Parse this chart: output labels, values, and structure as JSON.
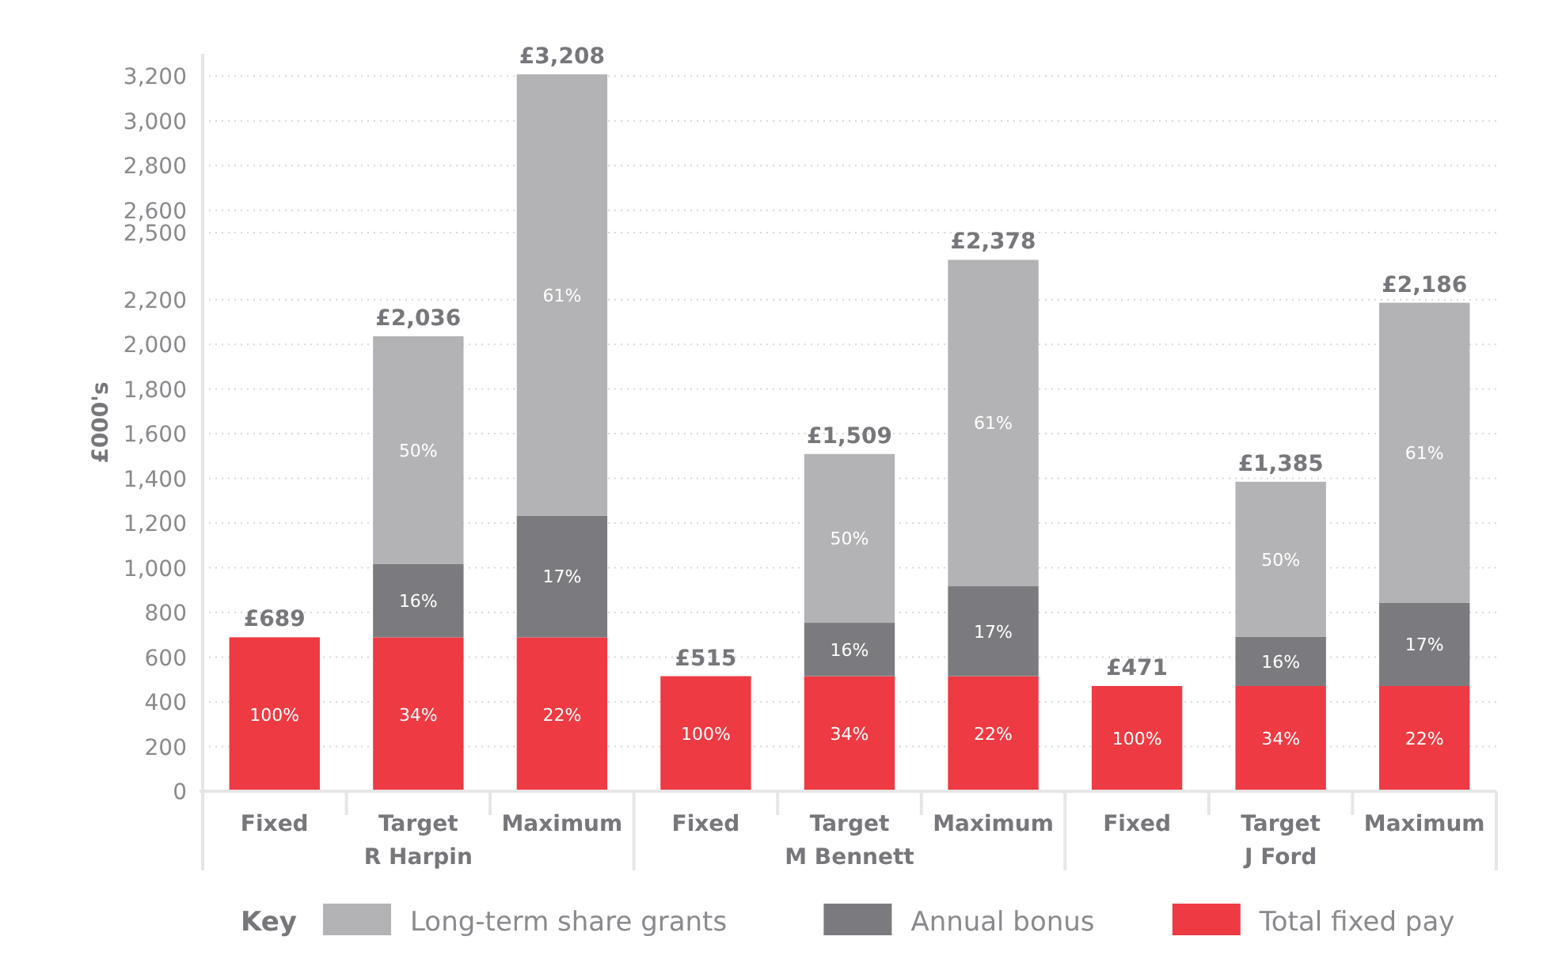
{
  "chart_data": {
    "type": "bar",
    "stacked": true,
    "ylabel": "£000's",
    "legend": "bottom",
    "legend_title": "Key",
    "grid": "y",
    "data_labels": false,
    "categories": [
      "Fixed",
      "Target",
      "Maximum",
      "Fixed",
      "Target",
      "Maximum",
      "Fixed",
      "Target",
      "Maximum"
    ],
    "annotations": [
      "R Harpin",
      "M Bennett",
      "J Ford",
      "100%",
      "34%",
      "16%",
      "50%",
      "22%",
      "17%",
      "61%",
      "100%",
      "34%",
      "16%",
      "50%",
      "22%",
      "17%",
      "61%",
      "100%",
      "34%",
      "16%",
      "50%",
      "22%",
      "17%",
      "61%"
    ],
    "series": [
      {
        "name": "Total fixed pay",
        "color": "#ee3a43",
        "values": [
          689,
          689,
          689,
          515,
          515,
          515,
          471,
          471,
          471
        ]
      },
      {
        "name": "Annual bonus",
        "color": "#7b7b7f",
        "values": [
          null,
          329,
          545,
          null,
          239,
          404,
          null,
          221,
          372
        ]
      },
      {
        "name": "Long-term share grants",
        "color": "#b3b3b5",
        "values": [
          null,
          1018,
          1974,
          null,
          755,
          1459,
          null,
          693,
          1343
        ]
      }
    ],
    "totals": [
      "£689",
      "£2,036",
      "£3,208",
      "£515",
      "£1,509",
      "£2,378",
      "£471",
      "£1,385",
      "£2,186"
    ],
    "ylim": [
      0,
      3300
    ],
    "yticks": [
      0,
      200,
      400,
      600,
      800,
      {
        "value": 1000,
        "label": "1,000"
      },
      {
        "value": 1200,
        "label": "1,200"
      },
      {
        "value": 1400,
        "label": "1,400"
      },
      {
        "value": 1600,
        "label": "1,600"
      },
      {
        "value": 1800,
        "label": "1,800"
      },
      {
        "value": 2000,
        "label": "2,000"
      },
      {
        "value": 2200,
        "label": "2,200"
      },
      {
        "value": 2500,
        "label": "2,500"
      },
      {
        "value": 2600,
        "label": "2,600"
      },
      {
        "value": 2800,
        "label": "2,800"
      },
      {
        "value": 3000,
        "label": "3,000"
      },
      {
        "value": 3200,
        "label": "3,200"
      }
    ]
  }
}
